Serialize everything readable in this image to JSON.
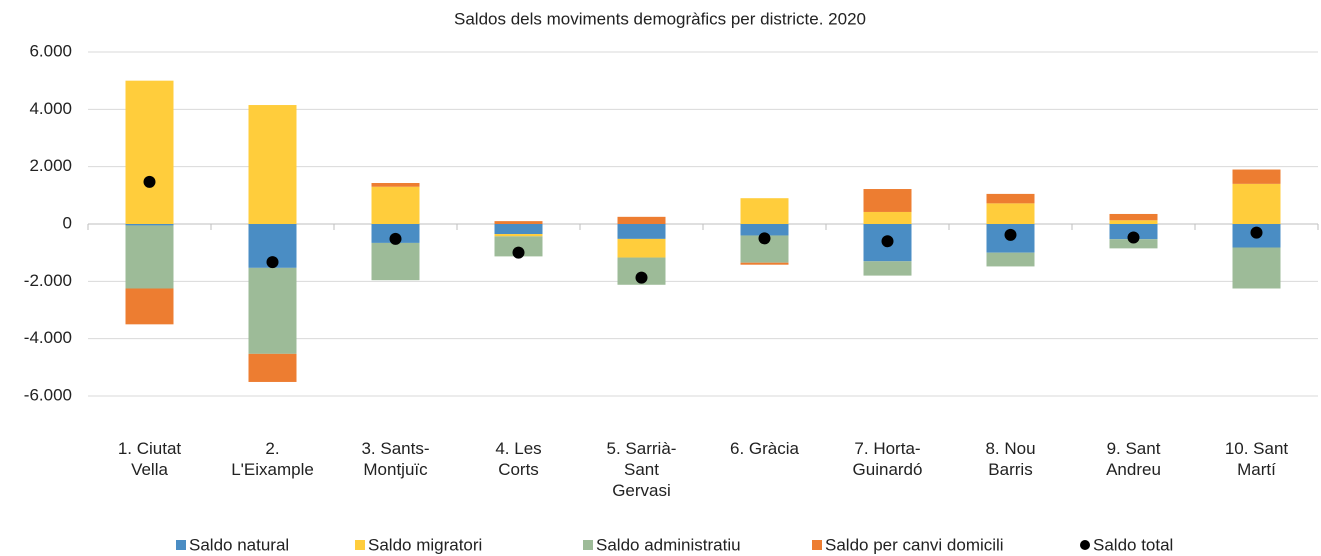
{
  "chart_data": {
    "type": "bar",
    "stacked": true,
    "title": "Saldos dels moviments demogràfics per districte. 2020",
    "categories": [
      "1. Ciutat Vella",
      "2. L'Eixample",
      "3. Sants-Montjuïc",
      "4. Les Corts",
      "5. Sarrià-Sant Gervasi",
      "6. Gràcia",
      "7. Horta-Guinardó",
      "8. Nou Barris",
      "9. Sant Andreu",
      "10. Sant Martí"
    ],
    "series": [
      {
        "name": "Saldo natural",
        "color": "#4a8dc4",
        "values": [
          -50,
          -1530,
          -660,
          -350,
          -520,
          -400,
          -1300,
          -1000,
          -530,
          -820
        ]
      },
      {
        "name": "Saldo migratori",
        "color": "#ffcd3c",
        "values": [
          5000,
          4150,
          1300,
          -80,
          -650,
          900,
          420,
          720,
          130,
          1400
        ]
      },
      {
        "name": "Saldo administratiu",
        "color": "#9dbb98",
        "values": [
          -2200,
          -3000,
          -1300,
          -700,
          -950,
          -950,
          -500,
          -480,
          -320,
          -1430
        ]
      },
      {
        "name": "Saldo per canvi domicili",
        "color": "#ed7d31",
        "values": [
          -1250,
          -980,
          130,
          100,
          250,
          -70,
          800,
          330,
          220,
          500
        ]
      },
      {
        "name": "Saldo total",
        "type": "scatter",
        "color": "#000000",
        "values": [
          1470,
          -1330,
          -520,
          -1000,
          -1870,
          -500,
          -600,
          -380,
          -470,
          -300
        ]
      }
    ],
    "ylim": [
      -6000,
      6000
    ],
    "yticks": [
      {
        "value": -6000,
        "label": "-6.000"
      },
      {
        "value": -4000,
        "label": "-4.000"
      },
      {
        "value": -2000,
        "label": "-2.000"
      },
      0,
      {
        "value": 2000,
        "label": "2.000"
      },
      {
        "value": 4000,
        "label": "4.000"
      },
      {
        "value": 6000,
        "label": "6.000"
      }
    ],
    "grid": true,
    "legend": "bottom"
  }
}
